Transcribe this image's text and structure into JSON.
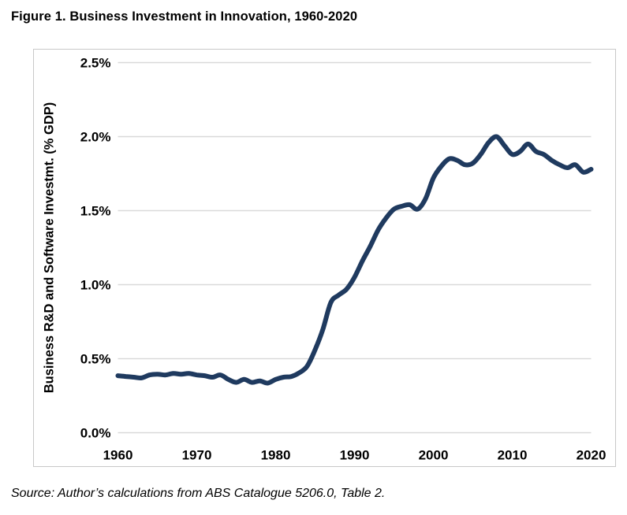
{
  "title": "Figure 1. Business Investment in Innovation, 1960-2020",
  "source_note": "Source: Author’s calculations from ABS Catalogue 5206.0, Table 2.",
  "colors": {
    "line": "#1f3a5f",
    "gridline": "#d9d9d9",
    "frame_border": "#c8c8c8",
    "text": "#000000"
  },
  "chart_data": {
    "type": "line",
    "title": "Figure 1. Business Investment in Innovation, 1960-2020",
    "xlabel": "",
    "ylabel": "Business R&D and Software Investmt. (% GDP)",
    "xlim": [
      1960,
      2020
    ],
    "ylim": [
      0,
      2.5
    ],
    "x_ticks": [
      1960,
      1970,
      1980,
      1990,
      2000,
      2010,
      2020
    ],
    "y_ticks": [
      0,
      0.5,
      1.0,
      1.5,
      2.0,
      2.5
    ],
    "y_tick_labels": [
      "0.0%",
      "0.5%",
      "1.0%",
      "1.5%",
      "2.0%",
      "2.5%"
    ],
    "grid": "horizontal-only",
    "legend": "none",
    "series": [
      {
        "name": "Business R&D and Software Investment (% GDP)",
        "x": [
          1960,
          1961,
          1962,
          1963,
          1964,
          1965,
          1966,
          1967,
          1968,
          1969,
          1970,
          1971,
          1972,
          1973,
          1974,
          1975,
          1976,
          1977,
          1978,
          1979,
          1980,
          1981,
          1982,
          1983,
          1984,
          1985,
          1986,
          1987,
          1988,
          1989,
          1990,
          1991,
          1992,
          1993,
          1994,
          1995,
          1996,
          1997,
          1998,
          1999,
          2000,
          2001,
          2002,
          2003,
          2004,
          2005,
          2006,
          2007,
          2008,
          2009,
          2010,
          2011,
          2012,
          2013,
          2014,
          2015,
          2016,
          2017,
          2018,
          2019,
          2020
        ],
        "values": [
          0.385,
          0.38,
          0.375,
          0.37,
          0.39,
          0.395,
          0.39,
          0.4,
          0.395,
          0.4,
          0.39,
          0.385,
          0.375,
          0.39,
          0.36,
          0.34,
          0.36,
          0.34,
          0.35,
          0.335,
          0.36,
          0.375,
          0.38,
          0.405,
          0.45,
          0.56,
          0.7,
          0.88,
          0.93,
          0.97,
          1.05,
          1.16,
          1.26,
          1.37,
          1.45,
          1.51,
          1.53,
          1.54,
          1.51,
          1.58,
          1.72,
          1.8,
          1.85,
          1.84,
          1.81,
          1.82,
          1.88,
          1.96,
          2.0,
          1.94,
          1.88,
          1.9,
          1.95,
          1.9,
          1.88,
          1.84,
          1.81,
          1.79,
          1.81,
          1.76,
          1.78
        ]
      }
    ]
  }
}
